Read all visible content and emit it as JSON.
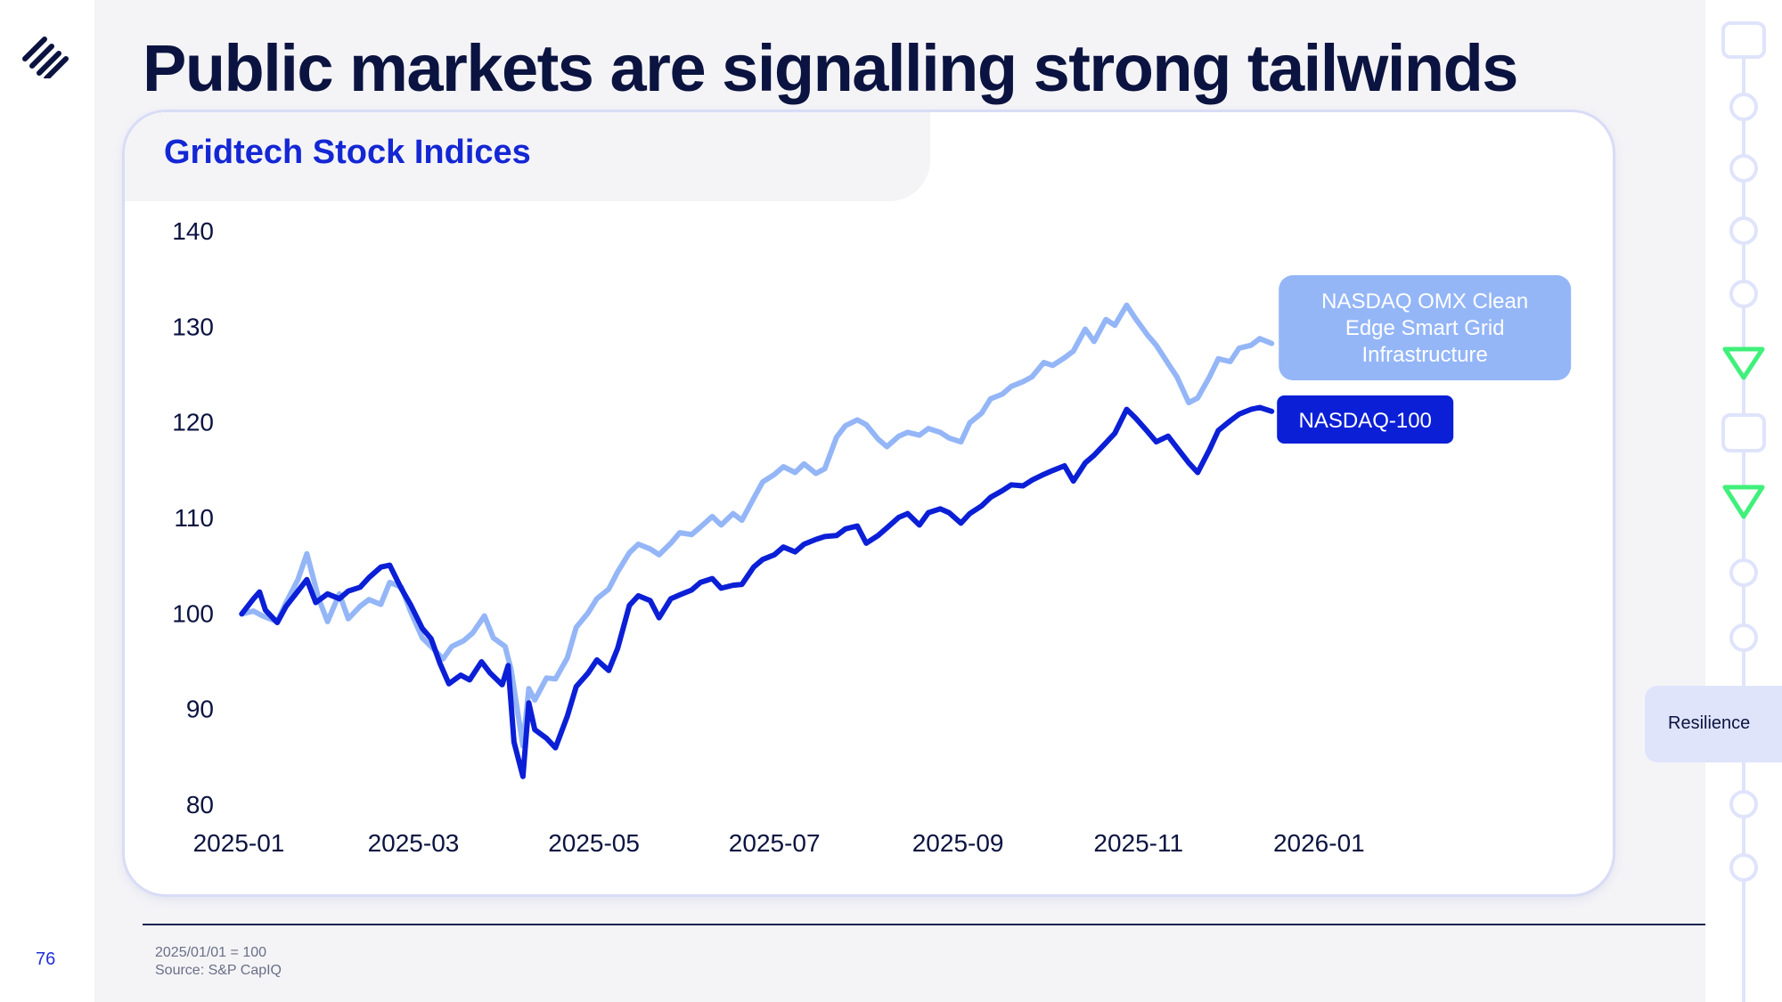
{
  "page": {
    "title": "Public markets are signalling strong tailwinds",
    "page_number": "76",
    "footnotes": [
      "2025/01/01 = 100",
      "Source: S&P CapIQ"
    ],
    "side_tag": "Resilience",
    "icons": [
      "brand-stripes-logo",
      "timeline-rail"
    ]
  },
  "colors": {
    "navy": "#0b1340",
    "accent": "#1427d4",
    "series_dark": "#0b1fd6",
    "series_light": "#94b6f7",
    "timeline": "#dfe4fb",
    "timeline_active": "#3ff07a"
  },
  "chart_data": {
    "type": "line",
    "title": "Gridtech Stock Indices",
    "xlabel": "",
    "ylabel": "",
    "ylim": [
      80,
      140
    ],
    "yticks": [
      80,
      90,
      100,
      110,
      120,
      130,
      140
    ],
    "xticks": [
      "2025-01",
      "2025-03",
      "2025-05",
      "2025-07",
      "2025-09",
      "2025-11",
      "2026-01"
    ],
    "xlim": [
      "2025-01-01",
      "2026-01-31"
    ],
    "grid": false,
    "legend": "inline labels at line ends",
    "series": [
      {
        "name": "NASDAQ OMX Clean Edge Smart Grid Infrastructure",
        "color": "#94b6f7",
        "points": [
          [
            "2025-01-02",
            100.0
          ],
          [
            "2025-01-06",
            100.3
          ],
          [
            "2025-01-09",
            99.8
          ],
          [
            "2025-01-14",
            99.2
          ],
          [
            "2025-01-17",
            101.2
          ],
          [
            "2025-01-21",
            103.6
          ],
          [
            "2025-01-24",
            106.3
          ],
          [
            "2025-01-28",
            101.6
          ],
          [
            "2025-01-31",
            99.2
          ],
          [
            "2025-02-04",
            102.1
          ],
          [
            "2025-02-07",
            99.5
          ],
          [
            "2025-02-11",
            100.8
          ],
          [
            "2025-02-14",
            101.5
          ],
          [
            "2025-02-18",
            101.0
          ],
          [
            "2025-02-21",
            103.3
          ],
          [
            "2025-02-25",
            102.8
          ],
          [
            "2025-02-28",
            100.3
          ],
          [
            "2025-03-04",
            97.5
          ],
          [
            "2025-03-07",
            96.6
          ],
          [
            "2025-03-11",
            95.3
          ],
          [
            "2025-03-14",
            96.6
          ],
          [
            "2025-03-18",
            97.2
          ],
          [
            "2025-03-21",
            98.0
          ],
          [
            "2025-03-25",
            99.8
          ],
          [
            "2025-03-28",
            97.5
          ],
          [
            "2025-04-01",
            96.6
          ],
          [
            "2025-04-03",
            94.2
          ],
          [
            "2025-04-07",
            86.2
          ],
          [
            "2025-04-09",
            92.2
          ],
          [
            "2025-04-11",
            91.0
          ],
          [
            "2025-04-15",
            93.3
          ],
          [
            "2025-04-18",
            93.2
          ],
          [
            "2025-04-22",
            95.4
          ],
          [
            "2025-04-25",
            98.6
          ],
          [
            "2025-04-29",
            100.1
          ],
          [
            "2025-05-02",
            101.6
          ],
          [
            "2025-05-06",
            102.6
          ],
          [
            "2025-05-09",
            104.4
          ],
          [
            "2025-05-13",
            106.4
          ],
          [
            "2025-05-16",
            107.3
          ],
          [
            "2025-05-20",
            106.8
          ],
          [
            "2025-05-23",
            106.2
          ],
          [
            "2025-05-27",
            107.4
          ],
          [
            "2025-05-30",
            108.5
          ],
          [
            "2025-06-03",
            108.3
          ],
          [
            "2025-06-06",
            109.1
          ],
          [
            "2025-06-10",
            110.2
          ],
          [
            "2025-06-13",
            109.3
          ],
          [
            "2025-06-17",
            110.5
          ],
          [
            "2025-06-20",
            109.8
          ],
          [
            "2025-06-24",
            112.1
          ],
          [
            "2025-06-27",
            113.8
          ],
          [
            "2025-07-01",
            114.6
          ],
          [
            "2025-07-04",
            115.4
          ],
          [
            "2025-07-08",
            114.8
          ],
          [
            "2025-07-11",
            115.7
          ],
          [
            "2025-07-15",
            114.7
          ],
          [
            "2025-07-18",
            115.2
          ],
          [
            "2025-07-22",
            118.5
          ],
          [
            "2025-07-25",
            119.7
          ],
          [
            "2025-07-29",
            120.3
          ],
          [
            "2025-08-01",
            119.8
          ],
          [
            "2025-08-05",
            118.3
          ],
          [
            "2025-08-08",
            117.5
          ],
          [
            "2025-08-12",
            118.6
          ],
          [
            "2025-08-15",
            119.0
          ],
          [
            "2025-08-19",
            118.7
          ],
          [
            "2025-08-22",
            119.4
          ],
          [
            "2025-08-26",
            119.0
          ],
          [
            "2025-08-29",
            118.4
          ],
          [
            "2025-09-02",
            118.0
          ],
          [
            "2025-09-05",
            120.0
          ],
          [
            "2025-09-09",
            121.0
          ],
          [
            "2025-09-12",
            122.5
          ],
          [
            "2025-09-16",
            123.0
          ],
          [
            "2025-09-19",
            123.8
          ],
          [
            "2025-09-23",
            124.3
          ],
          [
            "2025-09-26",
            124.8
          ],
          [
            "2025-09-30",
            126.3
          ],
          [
            "2025-10-03",
            126.0
          ],
          [
            "2025-10-07",
            126.8
          ],
          [
            "2025-10-10",
            127.5
          ],
          [
            "2025-10-14",
            129.8
          ],
          [
            "2025-10-17",
            128.5
          ],
          [
            "2025-10-21",
            130.8
          ],
          [
            "2025-10-24",
            130.2
          ],
          [
            "2025-10-28",
            132.3
          ],
          [
            "2025-10-31",
            130.9
          ],
          [
            "2025-11-04",
            129.2
          ],
          [
            "2025-11-07",
            128.1
          ],
          [
            "2025-11-11",
            126.2
          ],
          [
            "2025-11-14",
            124.8
          ],
          [
            "2025-11-18",
            122.1
          ],
          [
            "2025-11-21",
            122.6
          ],
          [
            "2025-11-25",
            124.8
          ],
          [
            "2025-11-28",
            126.7
          ],
          [
            "2025-12-02",
            126.4
          ],
          [
            "2025-12-05",
            127.8
          ],
          [
            "2025-12-09",
            128.1
          ],
          [
            "2025-12-12",
            128.8
          ],
          [
            "2025-12-16",
            128.3
          ]
        ]
      },
      {
        "name": "NASDAQ-100",
        "color": "#0b1fd6",
        "points": [
          [
            "2025-01-02",
            100.0
          ],
          [
            "2025-01-06",
            101.6
          ],
          [
            "2025-01-08",
            102.3
          ],
          [
            "2025-01-10",
            100.4
          ],
          [
            "2025-01-14",
            99.1
          ],
          [
            "2025-01-17",
            100.8
          ],
          [
            "2025-01-21",
            102.4
          ],
          [
            "2025-01-24",
            103.6
          ],
          [
            "2025-01-27",
            101.2
          ],
          [
            "2025-01-31",
            102.1
          ],
          [
            "2025-02-04",
            101.6
          ],
          [
            "2025-02-07",
            102.4
          ],
          [
            "2025-02-11",
            102.8
          ],
          [
            "2025-02-14",
            103.8
          ],
          [
            "2025-02-18",
            104.9
          ],
          [
            "2025-02-21",
            105.1
          ],
          [
            "2025-02-25",
            102.6
          ],
          [
            "2025-02-28",
            101.0
          ],
          [
            "2025-03-04",
            98.5
          ],
          [
            "2025-03-07",
            97.4
          ],
          [
            "2025-03-10",
            94.8
          ],
          [
            "2025-03-13",
            92.7
          ],
          [
            "2025-03-17",
            93.6
          ],
          [
            "2025-03-20",
            93.1
          ],
          [
            "2025-03-24",
            95.0
          ],
          [
            "2025-03-27",
            93.8
          ],
          [
            "2025-03-31",
            92.6
          ],
          [
            "2025-04-02",
            94.6
          ],
          [
            "2025-04-04",
            86.6
          ],
          [
            "2025-04-07",
            83.0
          ],
          [
            "2025-04-09",
            90.7
          ],
          [
            "2025-04-11",
            87.9
          ],
          [
            "2025-04-15",
            87.0
          ],
          [
            "2025-04-18",
            86.0
          ],
          [
            "2025-04-22",
            89.3
          ],
          [
            "2025-04-25",
            92.4
          ],
          [
            "2025-04-29",
            93.8
          ],
          [
            "2025-05-02",
            95.2
          ],
          [
            "2025-05-06",
            94.1
          ],
          [
            "2025-05-09",
            96.4
          ],
          [
            "2025-05-13",
            100.9
          ],
          [
            "2025-05-16",
            101.9
          ],
          [
            "2025-05-20",
            101.4
          ],
          [
            "2025-05-23",
            99.6
          ],
          [
            "2025-05-27",
            101.6
          ],
          [
            "2025-05-30",
            102.0
          ],
          [
            "2025-06-03",
            102.5
          ],
          [
            "2025-06-06",
            103.3
          ],
          [
            "2025-06-10",
            103.7
          ],
          [
            "2025-06-13",
            102.7
          ],
          [
            "2025-06-17",
            103.0
          ],
          [
            "2025-06-20",
            103.1
          ],
          [
            "2025-06-24",
            104.9
          ],
          [
            "2025-06-27",
            105.7
          ],
          [
            "2025-07-01",
            106.2
          ],
          [
            "2025-07-04",
            107.0
          ],
          [
            "2025-07-08",
            106.5
          ],
          [
            "2025-07-11",
            107.3
          ],
          [
            "2025-07-15",
            107.8
          ],
          [
            "2025-07-18",
            108.1
          ],
          [
            "2025-07-22",
            108.2
          ],
          [
            "2025-07-25",
            108.9
          ],
          [
            "2025-07-29",
            109.2
          ],
          [
            "2025-08-01",
            107.4
          ],
          [
            "2025-08-05",
            108.2
          ],
          [
            "2025-08-08",
            109.0
          ],
          [
            "2025-08-12",
            110.1
          ],
          [
            "2025-08-15",
            110.5
          ],
          [
            "2025-08-19",
            109.3
          ],
          [
            "2025-08-22",
            110.6
          ],
          [
            "2025-08-26",
            111.0
          ],
          [
            "2025-08-29",
            110.6
          ],
          [
            "2025-09-02",
            109.5
          ],
          [
            "2025-09-05",
            110.5
          ],
          [
            "2025-09-09",
            111.3
          ],
          [
            "2025-09-12",
            112.2
          ],
          [
            "2025-09-16",
            112.9
          ],
          [
            "2025-09-19",
            113.5
          ],
          [
            "2025-09-23",
            113.4
          ],
          [
            "2025-09-26",
            114.0
          ],
          [
            "2025-09-30",
            114.6
          ],
          [
            "2025-10-03",
            115.0
          ],
          [
            "2025-10-07",
            115.5
          ],
          [
            "2025-10-10",
            113.9
          ],
          [
            "2025-10-14",
            115.8
          ],
          [
            "2025-10-17",
            116.6
          ],
          [
            "2025-10-21",
            117.9
          ],
          [
            "2025-10-24",
            118.9
          ],
          [
            "2025-10-28",
            121.4
          ],
          [
            "2025-10-31",
            120.5
          ],
          [
            "2025-11-04",
            119.1
          ],
          [
            "2025-11-07",
            118.0
          ],
          [
            "2025-11-11",
            118.6
          ],
          [
            "2025-11-14",
            117.4
          ],
          [
            "2025-11-18",
            115.8
          ],
          [
            "2025-11-21",
            114.8
          ],
          [
            "2025-11-25",
            117.2
          ],
          [
            "2025-11-28",
            119.2
          ],
          [
            "2025-12-02",
            120.2
          ],
          [
            "2025-12-05",
            120.9
          ],
          [
            "2025-12-09",
            121.4
          ],
          [
            "2025-12-12",
            121.6
          ],
          [
            "2025-12-16",
            121.2
          ]
        ]
      }
    ]
  }
}
